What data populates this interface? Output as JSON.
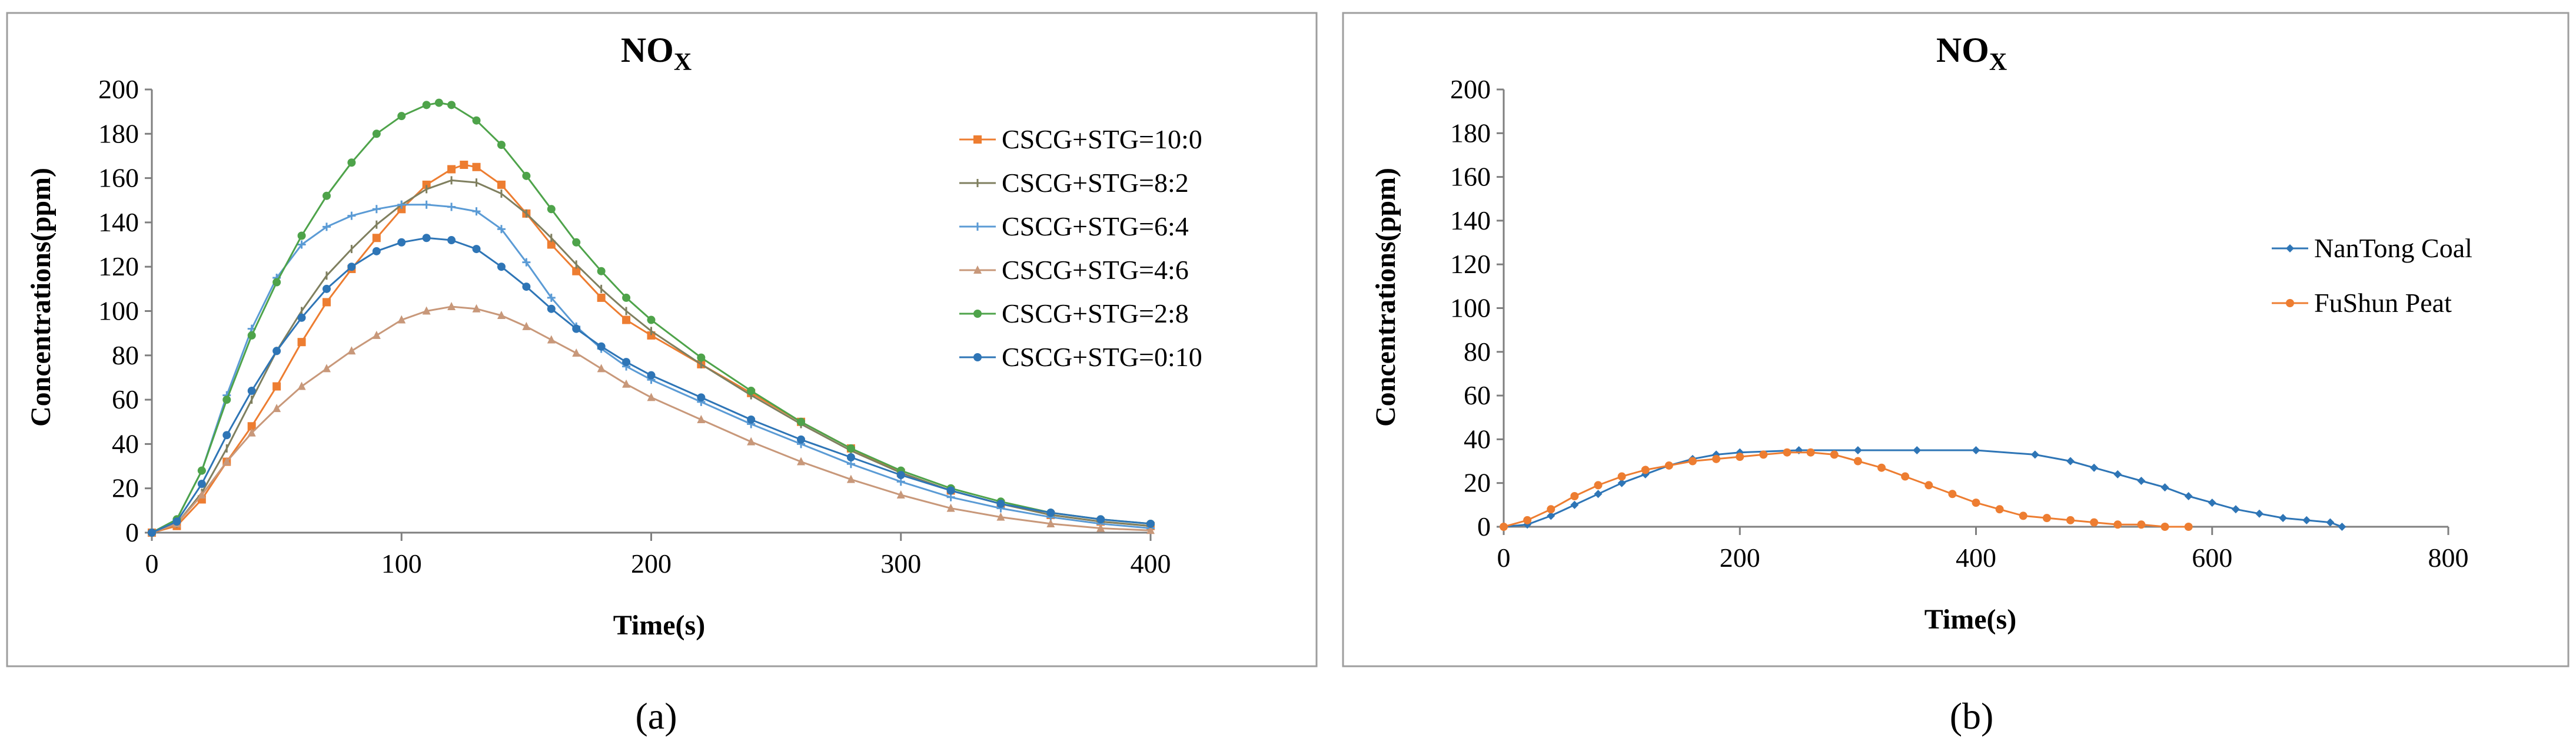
{
  "chart_data": [
    {
      "type": "line",
      "panel": "a",
      "caption": "(a)",
      "title": "NO",
      "title_subscript": "X",
      "xlabel": "Time(s)",
      "ylabel": "Concentrations(ppm)",
      "xlim": [
        0,
        400
      ],
      "ylim": [
        0,
        200
      ],
      "x_ticks": [
        0,
        100,
        200,
        300,
        400
      ],
      "y_ticks": [
        0,
        20,
        40,
        60,
        80,
        100,
        120,
        140,
        160,
        180,
        200
      ],
      "legend_position": "right",
      "series": [
        {
          "name": "CSCG+STG=10:0",
          "color": "#ed7d31",
          "marker": "square",
          "x": [
            0,
            10,
            20,
            30,
            40,
            50,
            60,
            70,
            80,
            90,
            100,
            110,
            120,
            125,
            130,
            140,
            150,
            160,
            170,
            180,
            190,
            200,
            220,
            240,
            260,
            280,
            300,
            320,
            340,
            360,
            380,
            400
          ],
          "y": [
            0,
            3,
            15,
            32,
            48,
            66,
            86,
            104,
            119,
            133,
            146,
            157,
            164,
            166,
            165,
            157,
            144,
            130,
            118,
            106,
            96,
            89,
            76,
            63,
            50,
            38,
            27,
            19,
            13,
            8,
            5,
            3
          ]
        },
        {
          "name": "CSCG+STG=8:2",
          "color": "#7f7f5f",
          "marker": "tick",
          "x": [
            0,
            10,
            20,
            30,
            40,
            50,
            60,
            70,
            80,
            90,
            100,
            110,
            120,
            130,
            140,
            150,
            160,
            170,
            180,
            190,
            200,
            220,
            240,
            260,
            280,
            300,
            320,
            340,
            360,
            380,
            400
          ],
          "y": [
            0,
            4,
            18,
            38,
            60,
            82,
            100,
            116,
            128,
            139,
            148,
            155,
            159,
            158,
            153,
            144,
            133,
            121,
            110,
            100,
            91,
            76,
            62,
            49,
            37,
            27,
            19,
            13,
            8,
            5,
            3
          ]
        },
        {
          "name": "CSCG+STG=6:4",
          "color": "#5b9bd5",
          "marker": "cross",
          "x": [
            0,
            10,
            20,
            30,
            40,
            50,
            60,
            70,
            80,
            90,
            100,
            110,
            120,
            130,
            140,
            150,
            160,
            170,
            180,
            190,
            200,
            220,
            240,
            260,
            280,
            300,
            320,
            340,
            360,
            380,
            400
          ],
          "y": [
            0,
            6,
            28,
            62,
            92,
            115,
            130,
            138,
            143,
            146,
            148,
            148,
            147,
            145,
            137,
            122,
            106,
            93,
            83,
            75,
            69,
            59,
            49,
            40,
            31,
            23,
            16,
            11,
            7,
            4,
            2
          ]
        },
        {
          "name": "CSCG+STG=4:6",
          "color": "#c8987a",
          "marker": "triangle",
          "x": [
            0,
            10,
            20,
            30,
            40,
            50,
            60,
            70,
            80,
            90,
            100,
            110,
            120,
            130,
            140,
            150,
            160,
            170,
            180,
            190,
            200,
            220,
            240,
            260,
            280,
            300,
            320,
            340,
            360,
            380,
            400
          ],
          "y": [
            0,
            4,
            17,
            32,
            45,
            56,
            66,
            74,
            82,
            89,
            96,
            100,
            102,
            101,
            98,
            93,
            87,
            81,
            74,
            67,
            61,
            51,
            41,
            32,
            24,
            17,
            11,
            7,
            4,
            2,
            1
          ]
        },
        {
          "name": "CSCG+STG=2:8",
          "color": "#4ea34a",
          "marker": "circle",
          "x": [
            0,
            10,
            20,
            30,
            40,
            50,
            60,
            70,
            80,
            90,
            100,
            110,
            115,
            120,
            130,
            140,
            150,
            160,
            170,
            180,
            190,
            200,
            220,
            240,
            260,
            280,
            300,
            320,
            340,
            360,
            380,
            400
          ],
          "y": [
            0,
            6,
            28,
            60,
            89,
            113,
            134,
            152,
            167,
            180,
            188,
            193,
            194,
            193,
            186,
            175,
            161,
            146,
            131,
            118,
            106,
            96,
            79,
            64,
            50,
            38,
            28,
            20,
            14,
            9,
            6,
            4
          ]
        },
        {
          "name": "CSCG+STG=0:10",
          "color": "#2e75b6",
          "marker": "circle",
          "x": [
            0,
            10,
            20,
            30,
            40,
            50,
            60,
            70,
            80,
            90,
            100,
            110,
            120,
            130,
            140,
            150,
            160,
            170,
            180,
            190,
            200,
            220,
            240,
            260,
            280,
            300,
            320,
            340,
            360,
            380,
            400
          ],
          "y": [
            0,
            5,
            22,
            44,
            64,
            82,
            97,
            110,
            120,
            127,
            131,
            133,
            132,
            128,
            120,
            111,
            101,
            92,
            84,
            77,
            71,
            61,
            51,
            42,
            34,
            26,
            19,
            13,
            9,
            6,
            4
          ]
        }
      ]
    },
    {
      "type": "line",
      "panel": "b",
      "caption": "(b)",
      "title": "NO",
      "title_subscript": "X",
      "xlabel": "Time(s)",
      "ylabel": "Concentrations(ppm)",
      "xlim": [
        0,
        800
      ],
      "ylim": [
        0,
        200
      ],
      "x_ticks": [
        0,
        200,
        400,
        600,
        800
      ],
      "y_ticks": [
        0,
        20,
        40,
        60,
        80,
        100,
        120,
        140,
        160,
        180,
        200
      ],
      "legend_position": "right",
      "series": [
        {
          "name": "NanTong Coal",
          "color": "#2e75b6",
          "marker": "diamond",
          "x": [
            0,
            20,
            40,
            60,
            80,
            100,
            120,
            140,
            160,
            180,
            200,
            250,
            300,
            350,
            400,
            450,
            480,
            500,
            520,
            540,
            560,
            580,
            600,
            620,
            640,
            660,
            680,
            700,
            710
          ],
          "y": [
            0,
            1,
            5,
            10,
            15,
            20,
            24,
            28,
            31,
            33,
            34,
            35,
            35,
            35,
            35,
            33,
            30,
            27,
            24,
            21,
            18,
            14,
            11,
            8,
            6,
            4,
            3,
            2,
            0
          ]
        },
        {
          "name": "FuShun Peat",
          "color": "#ed7d31",
          "marker": "circle",
          "x": [
            0,
            20,
            40,
            60,
            80,
            100,
            120,
            140,
            160,
            180,
            200,
            220,
            240,
            260,
            280,
            300,
            320,
            340,
            360,
            380,
            400,
            420,
            440,
            460,
            480,
            500,
            520,
            540,
            560,
            580
          ],
          "y": [
            0,
            3,
            8,
            14,
            19,
            23,
            26,
            28,
            30,
            31,
            32,
            33,
            34,
            34,
            33,
            30,
            27,
            23,
            19,
            15,
            11,
            8,
            5,
            4,
            3,
            2,
            1,
            1,
            0,
            0
          ]
        }
      ]
    }
  ]
}
